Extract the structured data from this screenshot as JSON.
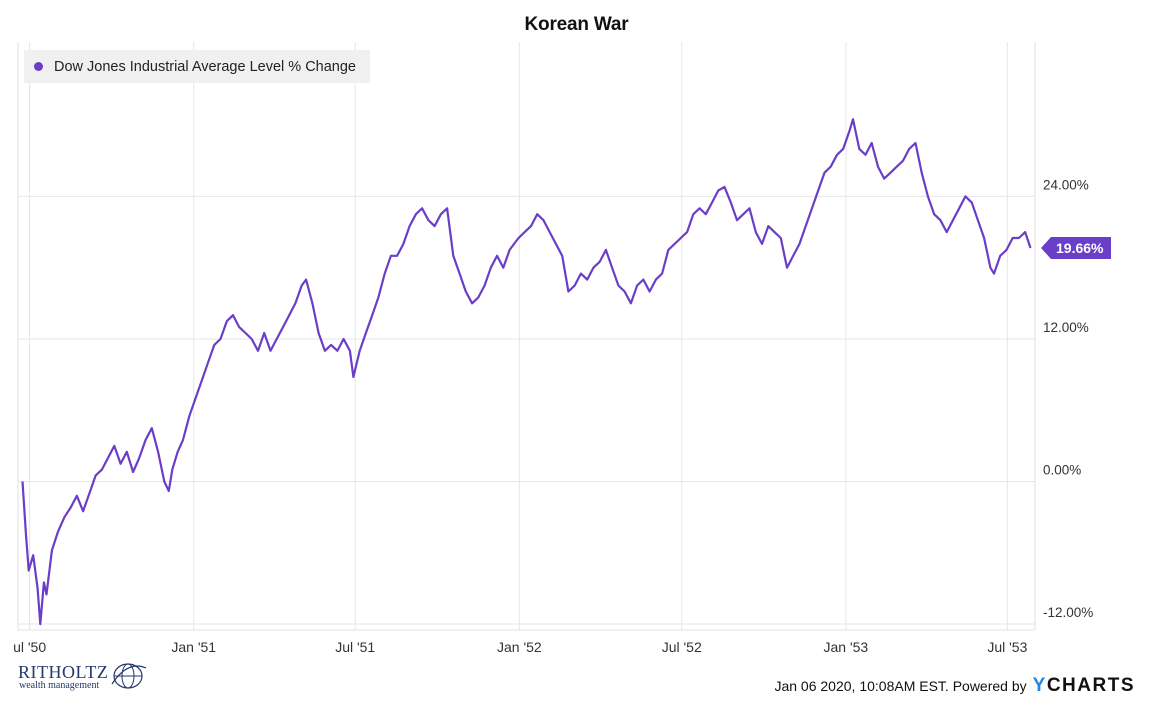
{
  "chart_data": {
    "type": "line",
    "title": "Korean War",
    "series": [
      {
        "name": "Dow Jones Industrial Average Level % Change",
        "color": "#6a3ec7",
        "last_value_label": "19.66%",
        "points": [
          [
            "1950-06-23",
            0.0
          ],
          [
            "1950-06-27",
            -4.5
          ],
          [
            "1950-06-30",
            -7.5
          ],
          [
            "1950-07-05",
            -6.2
          ],
          [
            "1950-07-10",
            -9.0
          ],
          [
            "1950-07-13",
            -12.0
          ],
          [
            "1950-07-17",
            -8.5
          ],
          [
            "1950-07-20",
            -9.5
          ],
          [
            "1950-07-26",
            -5.8
          ],
          [
            "1950-08-02",
            -4.2
          ],
          [
            "1950-08-09",
            -3.0
          ],
          [
            "1950-08-16",
            -2.2
          ],
          [
            "1950-08-23",
            -1.2
          ],
          [
            "1950-08-30",
            -2.5
          ],
          [
            "1950-09-06",
            -1.0
          ],
          [
            "1950-09-13",
            0.5
          ],
          [
            "1950-09-20",
            1.0
          ],
          [
            "1950-09-27",
            2.0
          ],
          [
            "1950-10-04",
            3.0
          ],
          [
            "1950-10-11",
            1.5
          ],
          [
            "1950-10-18",
            2.5
          ],
          [
            "1950-10-25",
            0.8
          ],
          [
            "1950-11-01",
            2.0
          ],
          [
            "1950-11-08",
            3.5
          ],
          [
            "1950-11-15",
            4.5
          ],
          [
            "1950-11-22",
            2.5
          ],
          [
            "1950-11-29",
            0.0
          ],
          [
            "1950-12-04",
            -0.8
          ],
          [
            "1950-12-08",
            1.0
          ],
          [
            "1950-12-14",
            2.5
          ],
          [
            "1950-12-20",
            3.5
          ],
          [
            "1950-12-27",
            5.5
          ],
          [
            "1951-01-03",
            7.0
          ],
          [
            "1951-01-10",
            8.5
          ],
          [
            "1951-01-17",
            10.0
          ],
          [
            "1951-01-24",
            11.5
          ],
          [
            "1951-01-31",
            12.0
          ],
          [
            "1951-02-07",
            13.5
          ],
          [
            "1951-02-14",
            14.0
          ],
          [
            "1951-02-21",
            13.0
          ],
          [
            "1951-02-28",
            12.5
          ],
          [
            "1951-03-07",
            12.0
          ],
          [
            "1951-03-14",
            11.0
          ],
          [
            "1951-03-21",
            12.5
          ],
          [
            "1951-03-28",
            11.0
          ],
          [
            "1951-04-04",
            12.0
          ],
          [
            "1951-04-11",
            13.0
          ],
          [
            "1951-04-18",
            14.0
          ],
          [
            "1951-04-25",
            15.0
          ],
          [
            "1951-05-02",
            16.5
          ],
          [
            "1951-05-07",
            17.0
          ],
          [
            "1951-05-14",
            15.0
          ],
          [
            "1951-05-21",
            12.5
          ],
          [
            "1951-05-28",
            11.0
          ],
          [
            "1951-06-04",
            11.5
          ],
          [
            "1951-06-11",
            11.0
          ],
          [
            "1951-06-18",
            12.0
          ],
          [
            "1951-06-25",
            11.0
          ],
          [
            "1951-06-29",
            8.8
          ],
          [
            "1951-07-06",
            11.0
          ],
          [
            "1951-07-13",
            12.5
          ],
          [
            "1951-07-20",
            14.0
          ],
          [
            "1951-07-27",
            15.5
          ],
          [
            "1951-08-03",
            17.5
          ],
          [
            "1951-08-10",
            19.0
          ],
          [
            "1951-08-17",
            19.0
          ],
          [
            "1951-08-24",
            20.0
          ],
          [
            "1951-08-31",
            21.5
          ],
          [
            "1951-09-07",
            22.5
          ],
          [
            "1951-09-14",
            23.0
          ],
          [
            "1951-09-21",
            22.0
          ],
          [
            "1951-09-28",
            21.5
          ],
          [
            "1951-10-05",
            22.5
          ],
          [
            "1951-10-12",
            23.0
          ],
          [
            "1951-10-19",
            19.0
          ],
          [
            "1951-10-26",
            17.5
          ],
          [
            "1951-11-02",
            16.0
          ],
          [
            "1951-11-09",
            15.0
          ],
          [
            "1951-11-16",
            15.5
          ],
          [
            "1951-11-23",
            16.5
          ],
          [
            "1951-11-30",
            18.0
          ],
          [
            "1951-12-07",
            19.0
          ],
          [
            "1951-12-14",
            18.0
          ],
          [
            "1951-12-21",
            19.5
          ],
          [
            "1951-12-31",
            20.5
          ],
          [
            "1952-01-07",
            21.0
          ],
          [
            "1952-01-14",
            21.5
          ],
          [
            "1952-01-21",
            22.5
          ],
          [
            "1952-01-28",
            22.0
          ],
          [
            "1952-02-04",
            21.0
          ],
          [
            "1952-02-11",
            20.0
          ],
          [
            "1952-02-18",
            19.0
          ],
          [
            "1952-02-25",
            16.0
          ],
          [
            "1952-03-03",
            16.5
          ],
          [
            "1952-03-10",
            17.5
          ],
          [
            "1952-03-17",
            17.0
          ],
          [
            "1952-03-24",
            18.0
          ],
          [
            "1952-03-31",
            18.5
          ],
          [
            "1952-04-07",
            19.5
          ],
          [
            "1952-04-14",
            18.0
          ],
          [
            "1952-04-21",
            16.5
          ],
          [
            "1952-04-28",
            16.0
          ],
          [
            "1952-05-05",
            15.0
          ],
          [
            "1952-05-12",
            16.5
          ],
          [
            "1952-05-19",
            17.0
          ],
          [
            "1952-05-26",
            16.0
          ],
          [
            "1952-06-02",
            17.0
          ],
          [
            "1952-06-09",
            17.5
          ],
          [
            "1952-06-16",
            19.5
          ],
          [
            "1952-06-23",
            20.0
          ],
          [
            "1952-06-30",
            20.5
          ],
          [
            "1952-07-07",
            21.0
          ],
          [
            "1952-07-14",
            22.5
          ],
          [
            "1952-07-21",
            23.0
          ],
          [
            "1952-07-28",
            22.5
          ],
          [
            "1952-08-04",
            23.5
          ],
          [
            "1952-08-11",
            24.5
          ],
          [
            "1952-08-18",
            24.8
          ],
          [
            "1952-08-25",
            23.5
          ],
          [
            "1952-09-01",
            22.0
          ],
          [
            "1952-09-08",
            22.5
          ],
          [
            "1952-09-15",
            23.0
          ],
          [
            "1952-09-22",
            21.0
          ],
          [
            "1952-09-29",
            20.0
          ],
          [
            "1952-10-06",
            21.5
          ],
          [
            "1952-10-13",
            21.0
          ],
          [
            "1952-10-20",
            20.5
          ],
          [
            "1952-10-27",
            18.0
          ],
          [
            "1952-11-03",
            19.0
          ],
          [
            "1952-11-10",
            20.0
          ],
          [
            "1952-11-17",
            21.5
          ],
          [
            "1952-11-24",
            23.0
          ],
          [
            "1952-12-01",
            24.5
          ],
          [
            "1952-12-08",
            26.0
          ],
          [
            "1952-12-15",
            26.5
          ],
          [
            "1952-12-22",
            27.5
          ],
          [
            "1952-12-29",
            28.0
          ],
          [
            "1953-01-05",
            29.5
          ],
          [
            "1953-01-09",
            30.5
          ],
          [
            "1953-01-16",
            28.0
          ],
          [
            "1953-01-23",
            27.5
          ],
          [
            "1953-01-30",
            28.5
          ],
          [
            "1953-02-06",
            26.5
          ],
          [
            "1953-02-13",
            25.5
          ],
          [
            "1953-02-20",
            26.0
          ],
          [
            "1953-02-27",
            26.5
          ],
          [
            "1953-03-06",
            27.0
          ],
          [
            "1953-03-13",
            28.0
          ],
          [
            "1953-03-20",
            28.5
          ],
          [
            "1953-03-27",
            26.0
          ],
          [
            "1953-04-03",
            24.0
          ],
          [
            "1953-04-10",
            22.5
          ],
          [
            "1953-04-17",
            22.0
          ],
          [
            "1953-04-24",
            21.0
          ],
          [
            "1953-05-01",
            22.0
          ],
          [
            "1953-05-08",
            23.0
          ],
          [
            "1953-05-15",
            24.0
          ],
          [
            "1953-05-22",
            23.5
          ],
          [
            "1953-05-29",
            22.0
          ],
          [
            "1953-06-05",
            20.5
          ],
          [
            "1953-06-12",
            18.0
          ],
          [
            "1953-06-16",
            17.5
          ],
          [
            "1953-06-23",
            19.0
          ],
          [
            "1953-06-30",
            19.5
          ],
          [
            "1953-07-07",
            20.5
          ],
          [
            "1953-07-14",
            20.5
          ],
          [
            "1953-07-21",
            21.0
          ],
          [
            "1953-07-27",
            19.66
          ]
        ]
      }
    ],
    "x_ticks": [
      {
        "label": "ul '50",
        "date": "1950-07-01"
      },
      {
        "label": "Jan '51",
        "date": "1951-01-01"
      },
      {
        "label": "Jul '51",
        "date": "1951-07-01"
      },
      {
        "label": "Jan '52",
        "date": "1952-01-01"
      },
      {
        "label": "Jul '52",
        "date": "1952-07-01"
      },
      {
        "label": "Jan '53",
        "date": "1953-01-01"
      },
      {
        "label": "Jul '53",
        "date": "1953-07-01"
      }
    ],
    "y_ticks": [
      {
        "label": "-12.00%",
        "value": -12
      },
      {
        "label": "0.00%",
        "value": 0
      },
      {
        "label": "12.00%",
        "value": 12
      },
      {
        "label": "24.00%",
        "value": 24
      }
    ],
    "xlim": [
      "1950-06-18",
      "1953-08-01"
    ],
    "ylim": [
      -12.5,
      37
    ],
    "grid": true,
    "legend_position": "top-left"
  },
  "footer": {
    "timestamp": "Jan 06 2020, 10:08AM EST. Powered by",
    "brand_y": "Y",
    "brand_rest": "CHARTS"
  },
  "watermark": {
    "name": "RITHOLTZ",
    "subtitle": "wealth management"
  }
}
